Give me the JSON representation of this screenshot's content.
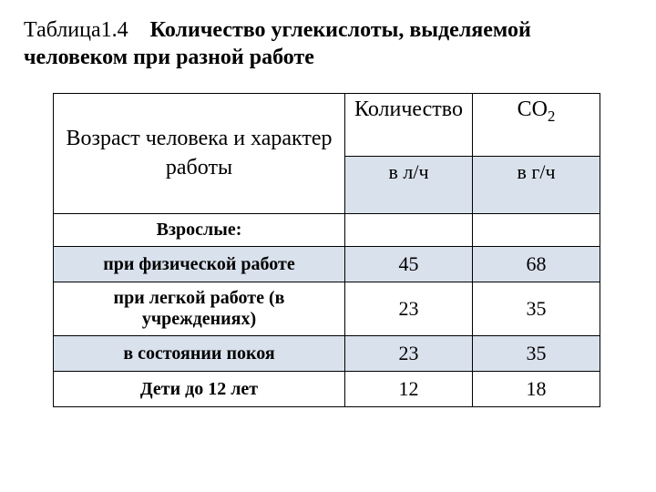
{
  "caption": {
    "label": "Таблица1.4",
    "title_line1": "Количество углекислоты, выделяемой",
    "title_line2": "человеком при разной работе"
  },
  "table": {
    "header": {
      "main": "Возраст человека и характер работы",
      "col2_top": "Количество",
      "col3_top_html": "CO",
      "col3_sub": "2",
      "unit_col2": "в л/ч",
      "unit_col3": "в г/ч"
    },
    "rows": [
      {
        "label": "Взрослые:",
        "v1": "",
        "v2": "",
        "shade": false,
        "tall": false
      },
      {
        "label": "при физической работе",
        "v1": "45",
        "v2": "68",
        "shade": true,
        "tall": false
      },
      {
        "label": "при легкой работе (в учреждениях)",
        "v1": "23",
        "v2": "35",
        "shade": false,
        "tall": true
      },
      {
        "label": "в состоянии покоя",
        "v1": "23",
        "v2": "35",
        "shade": true,
        "tall": false
      },
      {
        "label": "Дети до 12 лет",
        "v1": "12",
        "v2": "18",
        "shade": false,
        "tall": false
      }
    ]
  },
  "colors": {
    "shade": "#d9e1ec",
    "border": "#000000",
    "background": "#ffffff",
    "text": "#000000"
  }
}
